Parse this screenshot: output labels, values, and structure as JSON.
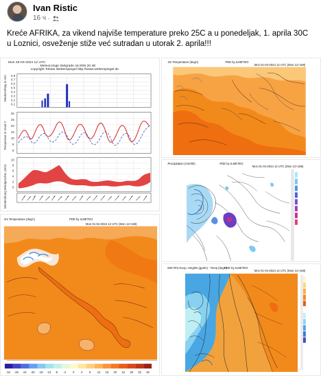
{
  "post": {
    "author": "Ivan Ristic",
    "time": "16 ч",
    "separator": "·",
    "audience_icon": "friends-icon",
    "text": "Kreće AFRIKA, za vikend najviše temperature preko 25C a u ponedeljak, 1. aprila 30C u Loznici, osveženje stiže već sutradan u utorak 2. aprila!!!"
  },
  "meteogram": {
    "header_left": "Mon 25-03-2024  12 UTC",
    "station": "Meteorologic Belgrade  44.80N 20.4E",
    "copyright": "copyright Tobias Wetterspiegel  http://www.wetterspiegel.de",
    "precip_label": "Niederschlag in mm",
    "temp_label": "Temperatur in Grad C",
    "wind_label": "Windgeschw. (m/s)",
    "dir_label": "Windrichtung",
    "ticks_p": [
      "0.8",
      "0.7",
      "0.6",
      "0.5",
      "0.4",
      "0.3",
      "0.2",
      "0.1"
    ],
    "ticks_t": [
      "30",
      "25",
      "20",
      "15",
      "10",
      "5",
      "0"
    ],
    "ticks_w": [
      "10",
      "8",
      "6",
      "4",
      "2",
      "0"
    ]
  },
  "maps": {
    "italy_title": "2m Temperature (degC)",
    "italy_time": "Mon 01-04-2024 12 UTC  (Mon 12+168)",
    "italy_credit": "PDE by ILMETEO",
    "europe_temp_title": "2m Temperature (degC)",
    "europe_temp_credit": "PDE by ILMETEO",
    "europe_temp_time": "Mon 01-04-2024 12 UTC  (Mon 12+168)",
    "precip_title": "Precipitation (mm/6h)",
    "precip_credit": "PDE by ILMETEO",
    "precip_time": "Mon 01-04-2024 12 UTC  (Mon 12+168)",
    "height_title": "500 hPa Geop. Heights (gpdm) - Temp (degC)",
    "height_credit": "PDE by ILMETEO",
    "height_time": "Mon 01-04-2024 12 UTC (Mon 12+168)",
    "italy_scale": [
      "-32",
      "-28",
      "-24",
      "-20",
      "-16",
      "-12",
      "-8",
      "-4",
      "0",
      "4",
      "8",
      "12",
      "16",
      "20",
      "24",
      "28",
      "32",
      "36"
    ]
  },
  "colors": {
    "orange": "#f28a1b",
    "deep_orange": "#ee6e10",
    "light_orange": "#f7b36b",
    "blue": "#4fa5e8",
    "meteogram_red": "#e24444",
    "blue_curve": "#2e4fb1"
  }
}
